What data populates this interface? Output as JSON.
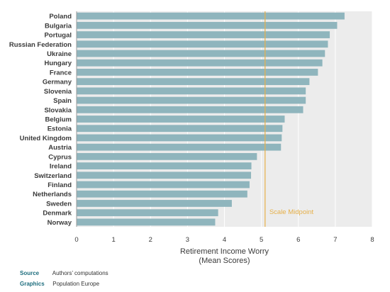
{
  "chart_data": {
    "type": "bar",
    "orientation": "horizontal",
    "categories": [
      "Poland",
      "Bulgaria",
      "Portugal",
      "Russian Federation",
      "Ukraine",
      "Hungary",
      "France",
      "Germany",
      "Slovenia",
      "Spain",
      "Slovakia",
      "Belgium",
      "Estonia",
      "United Kingdom",
      "Austria",
      "Cyprus",
      "Ireland",
      "Switzerland",
      "Finland",
      "Netherlands",
      "Sweden",
      "Denmark",
      "Norway"
    ],
    "values": [
      7.25,
      7.05,
      6.85,
      6.8,
      6.72,
      6.65,
      6.53,
      6.3,
      6.2,
      6.2,
      6.13,
      5.63,
      5.57,
      5.55,
      5.53,
      4.88,
      4.73,
      4.72,
      4.68,
      4.62,
      4.2,
      3.83,
      3.75
    ],
    "xlim": [
      0,
      8
    ],
    "xticks": [
      "0",
      "1",
      "2",
      "3",
      "4",
      "5",
      "6",
      "7",
      "8"
    ],
    "xlabel_line1": "Retirement Income Worry",
    "xlabel_line2": "(Mean Scores)",
    "midpoint_value": 5.1,
    "midpoint_label": "Scale Midpoint",
    "grid": true,
    "colors": {
      "bar": "#8fb5bd",
      "midpoint": "#e6b04a",
      "plot_bg": "#ececec",
      "grid": "#ffffff"
    }
  },
  "footer": {
    "source_key": "Source",
    "source_value": "Authors’ computations",
    "graphics_key": "Graphics",
    "graphics_value": "Population Europe"
  }
}
